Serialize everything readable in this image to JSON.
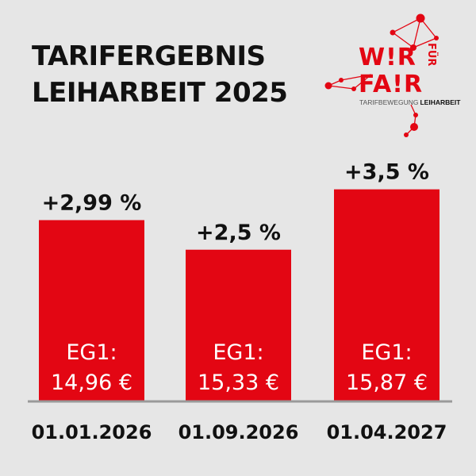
{
  "title": {
    "line1": "TARIFERGEBNIS",
    "line2": "LEIHARBEIT 2025"
  },
  "logo": {
    "wir": "W!R",
    "fuer": "FÜR",
    "fair": "FA!R",
    "sub_light": "TARIFBEWEGUNG",
    "sub_bold": "LEIHARBEIT",
    "color": "#e30613"
  },
  "colors": {
    "bar": "#e30613",
    "background": "#e6e6e6",
    "baseline": "#9a9a9a",
    "text": "#111111"
  },
  "chart_data": {
    "type": "bar",
    "categories": [
      "01.01.2026",
      "01.09.2026",
      "01.04.2027"
    ],
    "values": [
      2.99,
      2.5,
      3.5
    ],
    "data_labels": [
      "+2,99 %",
      "+2,5 %",
      "+3,5 %"
    ],
    "bar_labels": [
      [
        "EG1:",
        "14,96 €"
      ],
      [
        "EG1:",
        "15,33 €"
      ],
      [
        "EG1:",
        "15,87 €"
      ]
    ],
    "title": "TARIFERGEBNIS LEIHARBEIT 2025",
    "xlabel": "",
    "ylabel": "",
    "ylim": [
      0,
      4.1
    ],
    "grid": false,
    "legend": "none"
  }
}
